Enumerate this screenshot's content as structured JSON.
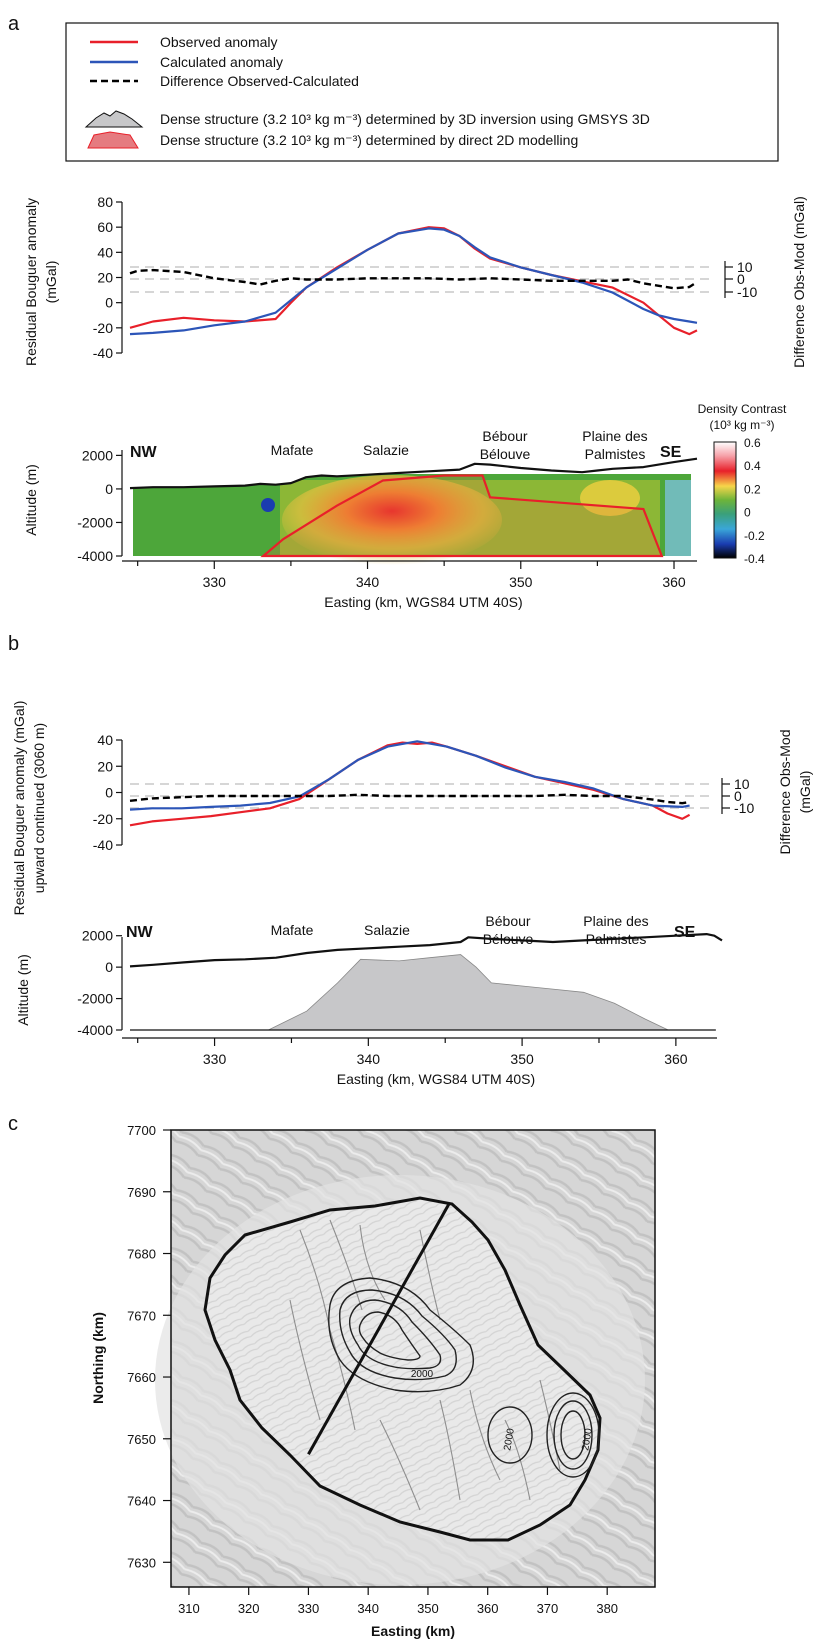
{
  "panels": {
    "a": "a",
    "b": "b",
    "c": "c"
  },
  "legend": {
    "observed": "Observed anomaly",
    "calculated": "Calculated anomaly",
    "difference": "Difference Observed-Calculated",
    "dense3d": "Dense structure (3.2 10³ kg m⁻³) determined by 3D inversion using GMSYS 3D",
    "dense2d": "Dense structure (3.2 10³ kg m⁻³) determined by direct 2D modelling"
  },
  "colors": {
    "observed": "#e8202a",
    "calculated": "#2c55b8",
    "difference": "#000000",
    "dense3d": "#c7c7c9",
    "dense2d": "#e57b80"
  },
  "locations": {
    "nw": "NW",
    "se": "SE",
    "mafate": "Mafate",
    "salazie": "Salazie",
    "bebour1": "Bébour",
    "bebour2": "Bélouve",
    "plaine1": "Plaine des",
    "plaine2": "Palmistes"
  },
  "colorbar": {
    "title1": "Density Contrast",
    "title2": "(10³ kg m⁻³)",
    "ticks": [
      "0.6",
      "0.4",
      "0.2",
      "0",
      "-0.2",
      "-0.4"
    ]
  },
  "chart_data": [
    {
      "type": "line",
      "title": "",
      "ylabel": "Residual Bouguer anomaly (mGal)",
      "ylabel_right": "Difference Obs-Mod (mGal)",
      "ylim": [
        -40,
        80
      ],
      "yticks": [
        "80",
        "60",
        "40",
        "20",
        "0",
        "-20",
        "-40"
      ],
      "yticks_right": [
        "10",
        "0",
        "-10"
      ],
      "series": [
        {
          "name": "Observed anomaly",
          "x": [
            324.5,
            326,
            328,
            330,
            332,
            334,
            335,
            336,
            337,
            338,
            340,
            342,
            344,
            345,
            346,
            347,
            348,
            350,
            352,
            354,
            356,
            358,
            359,
            360,
            361,
            361.5
          ],
          "y": [
            -20,
            -15,
            -12,
            -14,
            -15,
            -13,
            0,
            12,
            20,
            28,
            42,
            55,
            60,
            59,
            53,
            43,
            35,
            28,
            22,
            17,
            12,
            0,
            -10,
            -20,
            -25,
            -22
          ]
        },
        {
          "name": "Calculated anomaly",
          "x": [
            324.5,
            326,
            328,
            330,
            332,
            334,
            336,
            338,
            340,
            342,
            344,
            345,
            346,
            347,
            348,
            350,
            352,
            354,
            356,
            358,
            359,
            360,
            361,
            361.5
          ],
          "y": [
            -25,
            -24,
            -22,
            -18,
            -15,
            -8,
            12,
            27,
            42,
            55,
            59,
            58,
            53,
            44,
            36,
            28,
            22,
            16,
            8,
            -5,
            -10,
            -13,
            -15,
            -16
          ]
        },
        {
          "name": "Difference Observed-Calculated",
          "x": [
            324.5,
            325,
            326,
            328,
            330,
            332,
            333,
            334,
            335,
            336,
            338,
            340,
            342,
            344,
            346,
            348,
            350,
            352,
            354,
            356,
            357,
            358,
            359,
            360,
            361,
            361.5
          ],
          "y": [
            5,
            7,
            7.5,
            6,
            1,
            -2,
            -4,
            -1,
            1,
            0,
            0,
            1,
            1,
            1,
            0,
            1,
            0,
            -1,
            -1,
            -1,
            0,
            -3,
            -5,
            -7,
            -6,
            -2
          ]
        }
      ],
      "xlim": [
        324.5,
        361.5
      ]
    },
    {
      "type": "area",
      "ylabel": "Altitude (m)",
      "xlabel": "Easting (km, WGS84 UTM 40S)",
      "ylim": [
        -4000,
        2500
      ],
      "yticks": [
        "2000",
        "0",
        "-2000",
        "-4000"
      ],
      "xticks": [
        "330",
        "340",
        "350",
        "360"
      ],
      "xlim": [
        324.5,
        361.5
      ],
      "topography": {
        "x": [
          324.5,
          326,
          328,
          330,
          332,
          333,
          334,
          335,
          336,
          337,
          338,
          340,
          342,
          344,
          346,
          347,
          348,
          350,
          352,
          354,
          355,
          356,
          358,
          360,
          361.5
        ],
        "y": [
          50,
          100,
          100,
          150,
          200,
          300,
          250,
          350,
          700,
          800,
          750,
          850,
          950,
          1050,
          1150,
          1500,
          1450,
          1250,
          1100,
          1000,
          1100,
          1200,
          1300,
          1600,
          1800
        ]
      },
      "dense_2d": {
        "x": [
          333.2,
          334.5,
          338,
          341,
          345,
          347.5,
          348,
          358,
          359.2
        ],
        "y": [
          -4000,
          -3000,
          -1000,
          500,
          800,
          800,
          -500,
          -1200,
          -4000
        ]
      }
    },
    {
      "type": "line",
      "ylabel": "Residual Bouguer anomaly (mGal) upward continued (3060 m)",
      "ylabel_right": "Difference Obs-Mod (mGal)",
      "ylim": [
        -40,
        40
      ],
      "yticks": [
        "40",
        "20",
        "0",
        "-20",
        "-40"
      ],
      "yticks_right": [
        "10",
        "0",
        "-10"
      ],
      "xlim": [
        324.5,
        363
      ],
      "series": [
        {
          "name": "Observed anomaly",
          "x": [
            324.5,
            326,
            328,
            330,
            332,
            334,
            336,
            338,
            340,
            342,
            343,
            344,
            345,
            346,
            348,
            350,
            352,
            354,
            356,
            358,
            360,
            361,
            362,
            362.5
          ],
          "y": [
            -25,
            -22,
            -20,
            -18,
            -15,
            -12,
            -5,
            10,
            25,
            36,
            38,
            37,
            38,
            35,
            28,
            20,
            12,
            7,
            2,
            -5,
            -10,
            -16,
            -20,
            -17
          ]
        },
        {
          "name": "Calculated anomaly",
          "x": [
            324.5,
            326,
            328,
            330,
            332,
            334,
            336,
            338,
            340,
            342,
            344,
            346,
            348,
            350,
            352,
            354,
            356,
            358,
            360,
            362,
            362.5
          ],
          "y": [
            -13,
            -12,
            -12,
            -11,
            -10,
            -8,
            -3,
            10,
            25,
            35,
            39,
            35,
            28,
            19,
            12,
            8,
            3,
            -5,
            -10,
            -11,
            -10
          ]
        },
        {
          "name": "Difference Obs-Mod",
          "x": [
            324.5,
            326,
            328,
            330,
            332,
            334,
            336,
            338,
            340,
            342,
            344,
            346,
            348,
            350,
            352,
            354,
            356,
            358,
            360,
            361,
            362,
            362.5
          ],
          "y": [
            -4,
            -2,
            -1,
            0,
            0,
            0,
            0,
            0,
            1,
            0,
            0,
            0,
            0,
            0,
            0,
            1,
            0,
            0,
            -3,
            -5,
            -6,
            -5
          ]
        }
      ]
    },
    {
      "type": "area",
      "ylabel": "Altitude (m)",
      "xlabel": "Easting (km, WGS84 UTM 40S)",
      "ylim": [
        -4000,
        3000
      ],
      "yticks": [
        "2000",
        "0",
        "-2000",
        "-4000"
      ],
      "xticks": [
        "330",
        "340",
        "350",
        "360"
      ],
      "xlim": [
        324.5,
        363
      ],
      "topography": {
        "x": [
          324.5,
          326,
          328,
          330,
          332,
          334,
          336,
          338,
          340,
          342,
          344,
          346,
          346.5,
          348,
          350,
          352,
          354,
          356,
          358,
          360,
          362,
          362.5,
          363
        ],
        "y": [
          50,
          150,
          300,
          450,
          500,
          600,
          900,
          1100,
          1200,
          1300,
          1400,
          1600,
          1900,
          1800,
          1700,
          1600,
          1700,
          1800,
          1900,
          2000,
          2100,
          2000,
          1700
        ]
      },
      "dense_3d": {
        "x": [
          333.5,
          336,
          338,
          339.5,
          342,
          344,
          346,
          347,
          348,
          350,
          352,
          354,
          356,
          358,
          359.5
        ],
        "y": [
          -4000,
          -2800,
          -1000,
          500,
          400,
          600,
          800,
          0,
          -1000,
          -1200,
          -1400,
          -1600,
          -2300,
          -3300,
          -4000
        ]
      }
    },
    {
      "type": "scatter",
      "xlabel": "Easting (km)",
      "ylabel": "Northing (km)",
      "xticks": [
        "310",
        "320",
        "330",
        "340",
        "350",
        "360",
        "370",
        "380"
      ],
      "yticks": [
        "7700",
        "7690",
        "7680",
        "7670",
        "7660",
        "7650",
        "7640",
        "7630"
      ],
      "xlim": [
        307,
        388
      ],
      "ylim": [
        7626,
        7700
      ],
      "contour_labels": [
        "2000",
        "2000",
        "2000"
      ],
      "profile": {
        "x": [
          330,
          353.5
        ],
        "y": [
          7647.5,
          7688
        ]
      }
    }
  ]
}
